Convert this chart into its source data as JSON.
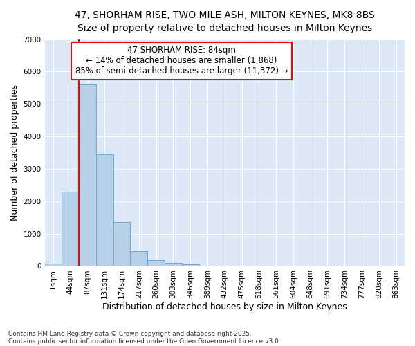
{
  "title_line1": "47, SHORHAM RISE, TWO MILE ASH, MILTON KEYNES, MK8 8BS",
  "title_line2": "Size of property relative to detached houses in Milton Keynes",
  "xlabel": "Distribution of detached houses by size in Milton Keynes",
  "ylabel": "Number of detached properties",
  "categories": [
    "1sqm",
    "44sqm",
    "87sqm",
    "131sqm",
    "174sqm",
    "217sqm",
    "260sqm",
    "303sqm",
    "346sqm",
    "389sqm",
    "432sqm",
    "475sqm",
    "518sqm",
    "561sqm",
    "604sqm",
    "648sqm",
    "691sqm",
    "734sqm",
    "777sqm",
    "820sqm",
    "863sqm"
  ],
  "bar_values": [
    70,
    2300,
    5600,
    3450,
    1350,
    450,
    180,
    100,
    50,
    0,
    0,
    0,
    0,
    0,
    0,
    0,
    0,
    0,
    0,
    0,
    0
  ],
  "bar_color": "#b8d0e8",
  "bar_edge_color": "#6aaad4",
  "background_color": "#dce8f5",
  "vline_x": 1.5,
  "vline_color": "red",
  "annotation_text": "47 SHORHAM RISE: 84sqm\n← 14% of detached houses are smaller (1,868)\n85% of semi-detached houses are larger (11,372) →",
  "annotation_box_color": "white",
  "annotation_box_edge_color": "red",
  "ylim": [
    0,
    7000
  ],
  "yticks": [
    0,
    1000,
    2000,
    3000,
    4000,
    5000,
    6000,
    7000
  ],
  "footnote": "Contains HM Land Registry data © Crown copyright and database right 2025.\nContains public sector information licensed under the Open Government Licence v3.0.",
  "title_fontsize": 10,
  "subtitle_fontsize": 9.5,
  "axis_label_fontsize": 9,
  "tick_fontsize": 7.5,
  "annotation_fontsize": 8.5
}
